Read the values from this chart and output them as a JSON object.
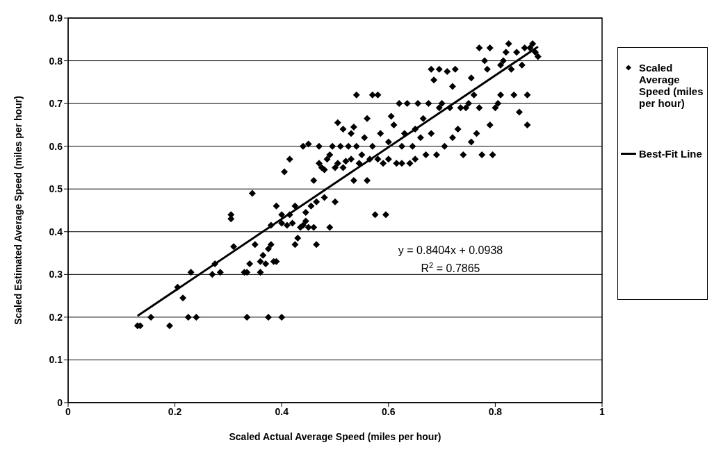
{
  "chart_data": {
    "type": "scatter",
    "xlabel": "Scaled Actual Average Speed (miles per hour)",
    "ylabel": "Scaled Estimated Average Speed (miles per hour)",
    "xlim": [
      0,
      1
    ],
    "xticks": [
      0,
      0.2,
      0.4,
      0.6,
      0.8,
      1
    ],
    "ylim": [
      0,
      0.9
    ],
    "yticks": [
      0,
      0.1,
      0.2,
      0.3,
      0.4,
      0.5,
      0.6,
      0.7,
      0.8,
      0.9
    ],
    "grid": "y",
    "legend": "right",
    "annotations": [
      "y = 0.8404x + 0.0938",
      "R$^{2}$ = 0.7865"
    ],
    "series": [
      {
        "name": "Scaled Average Speed (miles per hour)",
        "color": "#000000",
        "marker": "diamond",
        "x": [
          0.13,
          0.135,
          0.155,
          0.19,
          0.205,
          0.215,
          0.225,
          0.23,
          0.24,
          0.27,
          0.275,
          0.285,
          0.305,
          0.305,
          0.31,
          0.33,
          0.335,
          0.335,
          0.34,
          0.345,
          0.35,
          0.36,
          0.36,
          0.365,
          0.37,
          0.375,
          0.375,
          0.38,
          0.38,
          0.385,
          0.39,
          0.39,
          0.4,
          0.4,
          0.4,
          0.405,
          0.41,
          0.415,
          0.415,
          0.42,
          0.425,
          0.425,
          0.43,
          0.435,
          0.44,
          0.44,
          0.445,
          0.445,
          0.45,
          0.45,
          0.455,
          0.46,
          0.46,
          0.465,
          0.465,
          0.47,
          0.47,
          0.475,
          0.48,
          0.48,
          0.485,
          0.49,
          0.49,
          0.495,
          0.5,
          0.5,
          0.505,
          0.505,
          0.51,
          0.515,
          0.515,
          0.52,
          0.525,
          0.53,
          0.53,
          0.535,
          0.535,
          0.54,
          0.54,
          0.545,
          0.55,
          0.555,
          0.56,
          0.56,
          0.565,
          0.57,
          0.575,
          0.58,
          0.58,
          0.585,
          0.59,
          0.595,
          0.6,
          0.6,
          0.605,
          0.61,
          0.615,
          0.62,
          0.625,
          0.625,
          0.63,
          0.635,
          0.64,
          0.645,
          0.65,
          0.65,
          0.655,
          0.66,
          0.665,
          0.67,
          0.675,
          0.68,
          0.685,
          0.69,
          0.695,
          0.7,
          0.705,
          0.71,
          0.715,
          0.72,
          0.72,
          0.725,
          0.73,
          0.735,
          0.74,
          0.745,
          0.75,
          0.755,
          0.755,
          0.76,
          0.765,
          0.77,
          0.775,
          0.78,
          0.785,
          0.79,
          0.79,
          0.795,
          0.8,
          0.805,
          0.81,
          0.81,
          0.815,
          0.82,
          0.825,
          0.83,
          0.835,
          0.84,
          0.845,
          0.85,
          0.855,
          0.86,
          0.86,
          0.865,
          0.87,
          0.875,
          0.88,
          0.77,
          0.57,
          0.68,
          0.695
        ],
        "values": [
          0.18,
          0.18,
          0.2,
          0.18,
          0.27,
          0.245,
          0.2,
          0.305,
          0.2,
          0.3,
          0.325,
          0.305,
          0.43,
          0.44,
          0.365,
          0.305,
          0.305,
          0.2,
          0.325,
          0.49,
          0.37,
          0.33,
          0.305,
          0.345,
          0.325,
          0.36,
          0.2,
          0.37,
          0.415,
          0.33,
          0.46,
          0.33,
          0.2,
          0.44,
          0.42,
          0.54,
          0.415,
          0.57,
          0.44,
          0.42,
          0.37,
          0.46,
          0.385,
          0.41,
          0.415,
          0.6,
          0.425,
          0.445,
          0.41,
          0.605,
          0.46,
          0.52,
          0.41,
          0.47,
          0.37,
          0.6,
          0.56,
          0.55,
          0.48,
          0.545,
          0.57,
          0.58,
          0.41,
          0.6,
          0.47,
          0.55,
          0.56,
          0.655,
          0.6,
          0.64,
          0.55,
          0.565,
          0.6,
          0.63,
          0.57,
          0.52,
          0.645,
          0.72,
          0.6,
          0.56,
          0.58,
          0.62,
          0.665,
          0.52,
          0.57,
          0.6,
          0.44,
          0.72,
          0.57,
          0.63,
          0.56,
          0.44,
          0.57,
          0.61,
          0.67,
          0.65,
          0.56,
          0.7,
          0.6,
          0.56,
          0.63,
          0.7,
          0.56,
          0.6,
          0.64,
          0.57,
          0.7,
          0.62,
          0.665,
          0.58,
          0.7,
          0.63,
          0.755,
          0.58,
          0.69,
          0.7,
          0.6,
          0.775,
          0.69,
          0.74,
          0.62,
          0.78,
          0.64,
          0.69,
          0.58,
          0.69,
          0.7,
          0.76,
          0.61,
          0.72,
          0.63,
          0.69,
          0.58,
          0.8,
          0.78,
          0.83,
          0.65,
          0.58,
          0.69,
          0.7,
          0.72,
          0.79,
          0.8,
          0.82,
          0.84,
          0.78,
          0.72,
          0.82,
          0.68,
          0.79,
          0.83,
          0.72,
          0.65,
          0.83,
          0.84,
          0.82,
          0.81,
          0.83,
          0.72,
          0.78,
          0.78
        ]
      },
      {
        "name": "Best-Fit Line",
        "color": "#000000",
        "type": "line",
        "marker": "none",
        "x": [
          0.13,
          0.88
        ],
        "values": [
          0.203,
          0.833
        ]
      }
    ]
  }
}
